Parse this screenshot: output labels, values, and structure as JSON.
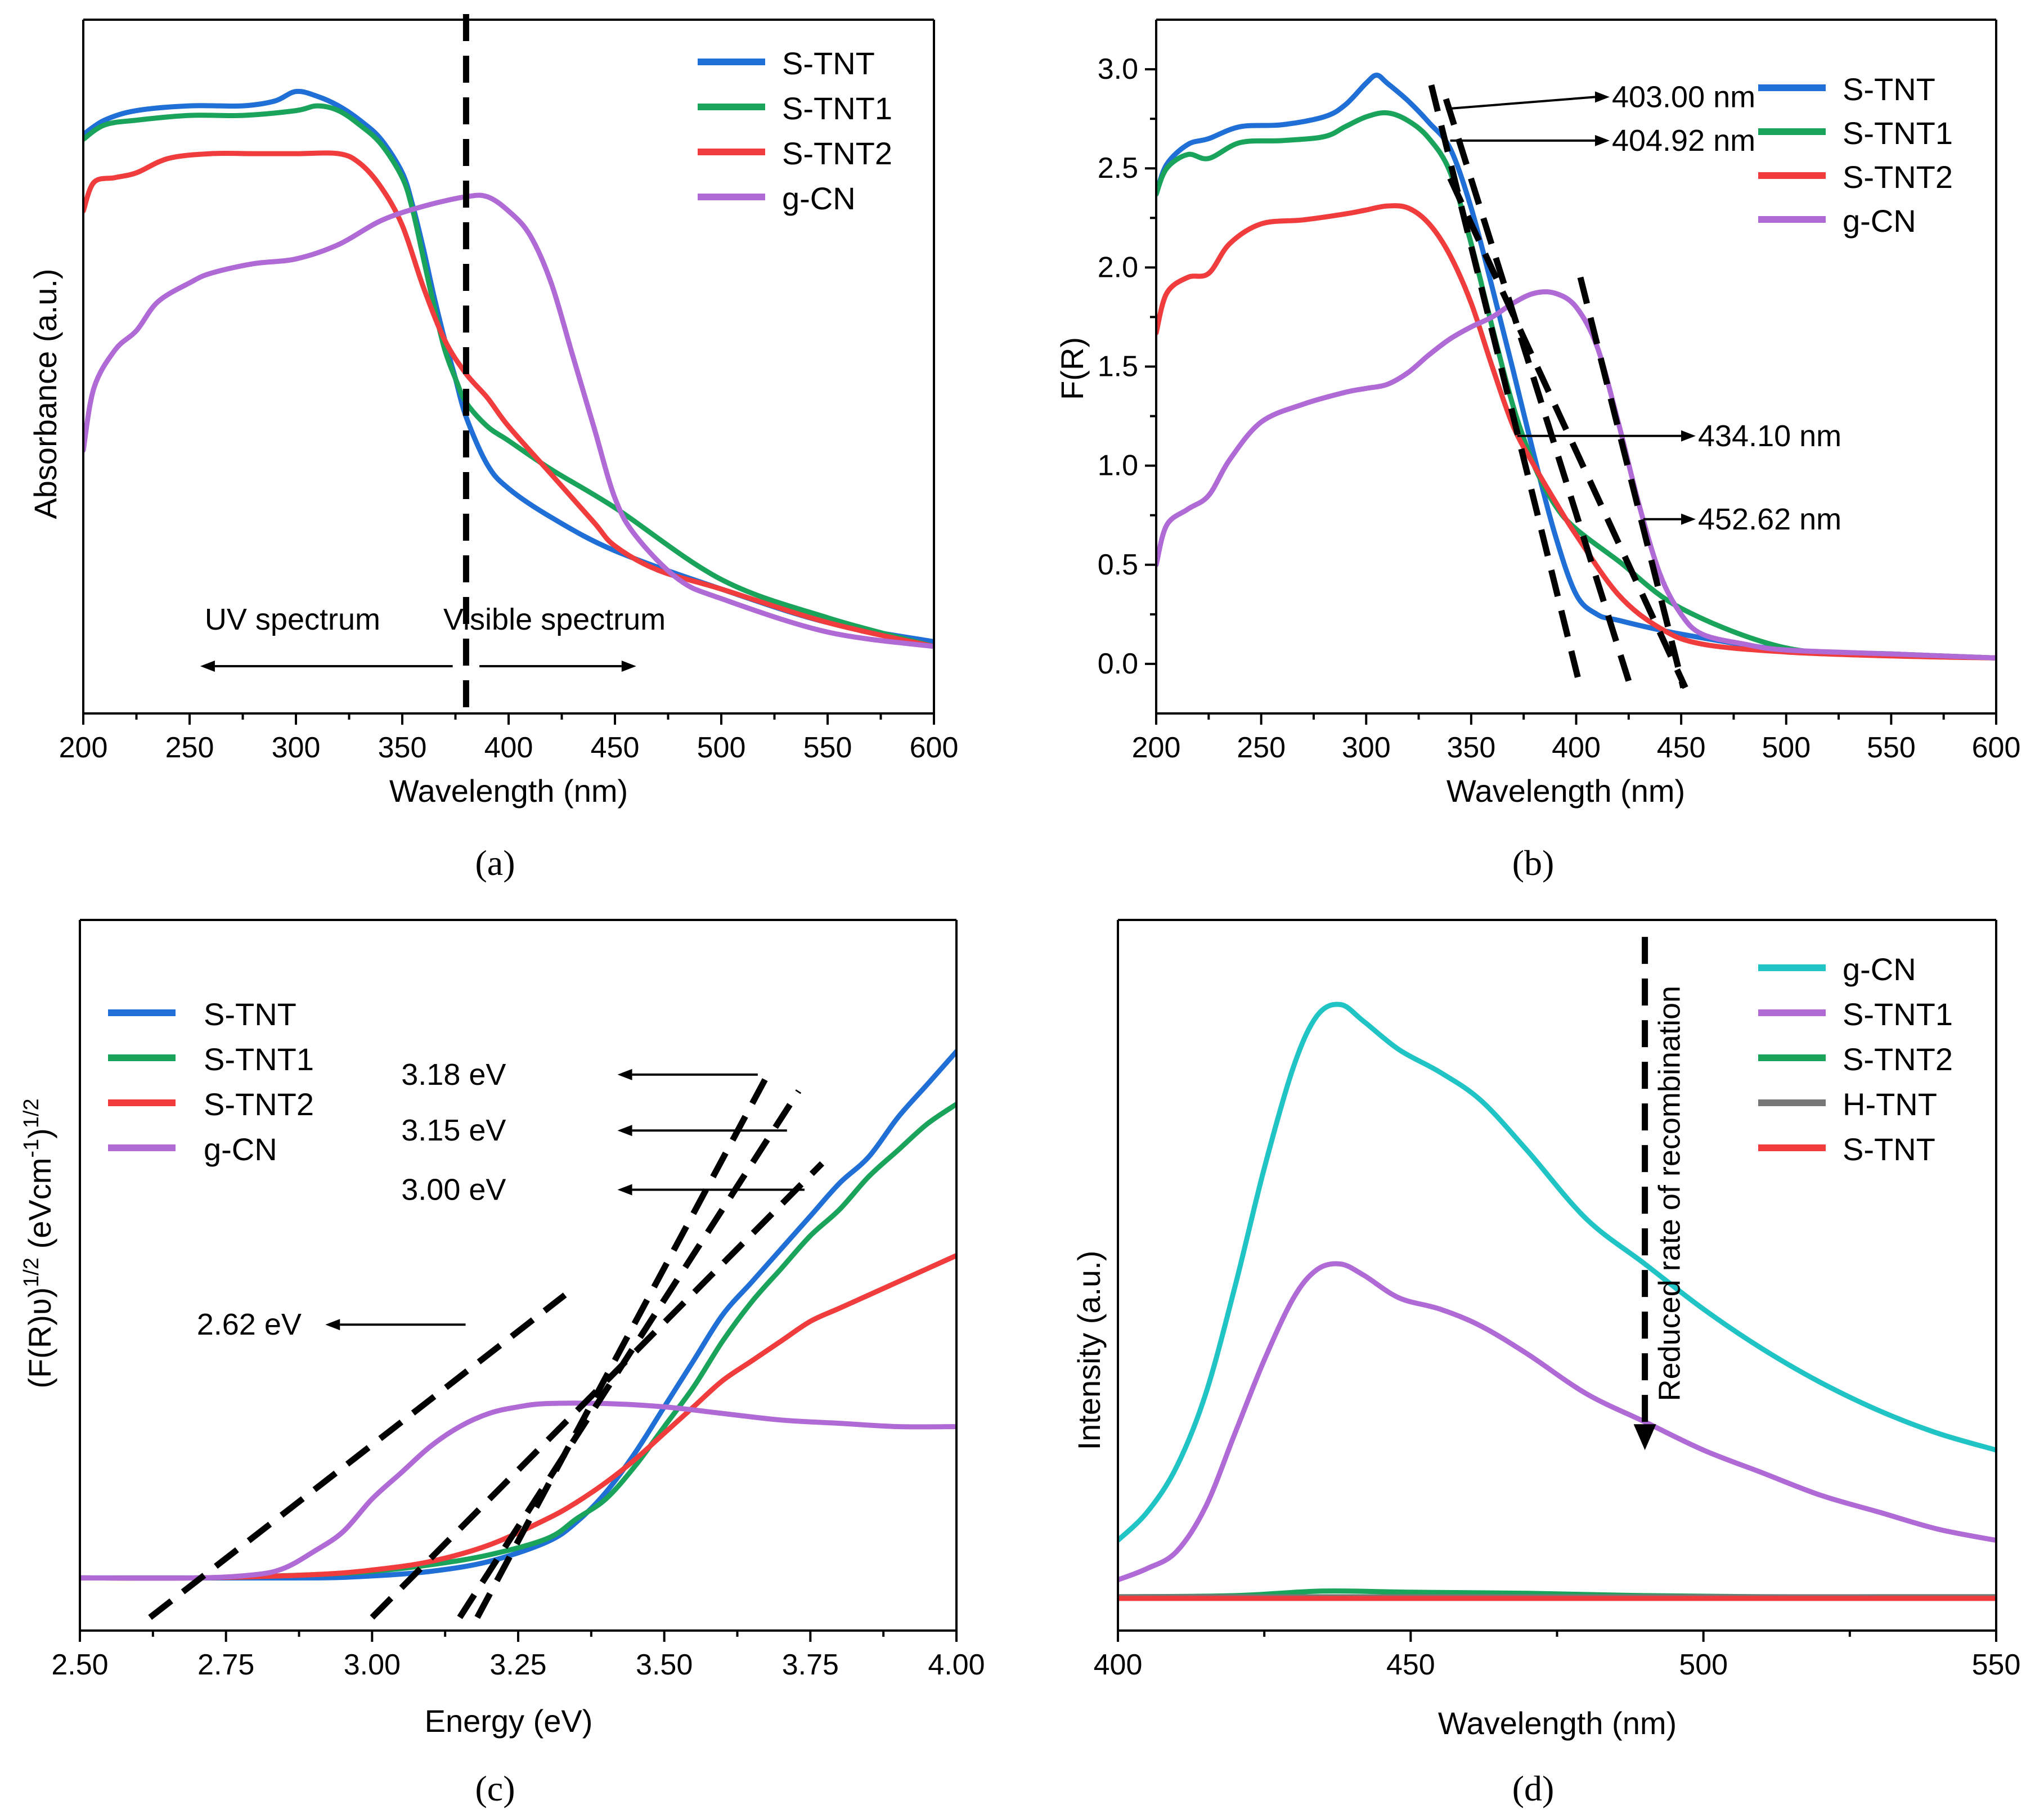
{
  "chart_data": [
    {
      "id": "a",
      "type": "line",
      "panel_label": "(a)",
      "xlabel": "Wavelength (nm)",
      "ylabel": "Absorbance (a.u.)",
      "xlim": [
        200,
        600
      ],
      "ylim": [
        0,
        1.45
      ],
      "xticks": [
        200,
        250,
        300,
        350,
        400,
        450,
        500,
        550,
        600
      ],
      "yticks": [],
      "legend_position": "top-right",
      "series": [
        {
          "name": "S-TNT",
          "color": "#1f6fd6",
          "x": [
            200,
            210,
            225,
            250,
            275,
            290,
            300,
            310,
            320,
            330,
            340,
            350,
            355,
            360,
            365,
            370,
            375,
            380,
            390,
            400,
            420,
            450,
            500,
            550,
            600
          ],
          "y": [
            1.21,
            1.24,
            1.26,
            1.27,
            1.27,
            1.28,
            1.3,
            1.29,
            1.27,
            1.24,
            1.2,
            1.13,
            1.06,
            0.97,
            0.87,
            0.78,
            0.7,
            0.62,
            0.52,
            0.47,
            0.41,
            0.34,
            0.26,
            0.19,
            0.15
          ]
        },
        {
          "name": "S-TNT1",
          "color": "#1aa35a",
          "x": [
            200,
            210,
            225,
            250,
            275,
            300,
            310,
            320,
            330,
            340,
            350,
            355,
            360,
            365,
            370,
            375,
            380,
            390,
            400,
            420,
            450,
            500,
            550,
            600
          ],
          "y": [
            1.2,
            1.23,
            1.24,
            1.25,
            1.25,
            1.26,
            1.27,
            1.26,
            1.23,
            1.19,
            1.12,
            1.05,
            0.95,
            0.85,
            0.76,
            0.7,
            0.65,
            0.6,
            0.57,
            0.51,
            0.43,
            0.28,
            0.2,
            0.14
          ]
        },
        {
          "name": "S-TNT2",
          "color": "#f03c3c",
          "x": [
            200,
            205,
            215,
            225,
            240,
            260,
            280,
            300,
            320,
            330,
            340,
            350,
            360,
            370,
            380,
            390,
            400,
            420,
            440,
            450,
            470,
            500,
            550,
            600
          ],
          "y": [
            1.05,
            1.11,
            1.12,
            1.13,
            1.16,
            1.17,
            1.17,
            1.17,
            1.17,
            1.15,
            1.1,
            1.02,
            0.89,
            0.78,
            0.71,
            0.66,
            0.6,
            0.5,
            0.4,
            0.35,
            0.3,
            0.26,
            0.19,
            0.14
          ]
        },
        {
          "name": "g-CN",
          "color": "#b06ad6",
          "x": [
            200,
            205,
            215,
            225,
            235,
            250,
            260,
            280,
            300,
            320,
            340,
            360,
            380,
            390,
            400,
            410,
            420,
            430,
            440,
            450,
            460,
            480,
            500,
            550,
            600
          ],
          "y": [
            0.55,
            0.68,
            0.76,
            0.8,
            0.86,
            0.9,
            0.92,
            0.94,
            0.95,
            0.98,
            1.03,
            1.06,
            1.08,
            1.08,
            1.05,
            1.0,
            0.9,
            0.75,
            0.6,
            0.45,
            0.37,
            0.28,
            0.24,
            0.17,
            0.14
          ]
        }
      ],
      "annotations": [
        {
          "text": "UV spectrum",
          "x": 300,
          "y": 0.14,
          "arrow_to_x": 255
        },
        {
          "text": "Visible spectrum",
          "x": 450,
          "y": 0.14,
          "arrow_to_x": 460
        }
      ],
      "vline_x": 380
    },
    {
      "id": "b",
      "type": "line",
      "panel_label": "(b)",
      "xlabel": "Wavelength (nm)",
      "ylabel": "F(R)",
      "xlim": [
        200,
        600
      ],
      "ylim": [
        -0.25,
        3.25
      ],
      "xticks": [
        200,
        250,
        300,
        350,
        400,
        450,
        500,
        550,
        600
      ],
      "yticks": [
        0.0,
        0.5,
        1.0,
        1.5,
        2.0,
        2.5,
        3.0
      ],
      "legend_position": "top-right",
      "series": [
        {
          "name": "S-TNT",
          "color": "#1f6fd6",
          "x": [
            200,
            205,
            215,
            225,
            240,
            260,
            280,
            290,
            300,
            305,
            310,
            320,
            330,
            340,
            350,
            360,
            370,
            380,
            390,
            400,
            410,
            420,
            450,
            500,
            550,
            600
          ],
          "y": [
            2.37,
            2.52,
            2.62,
            2.65,
            2.71,
            2.72,
            2.76,
            2.82,
            2.93,
            2.97,
            2.93,
            2.84,
            2.73,
            2.6,
            2.3,
            1.9,
            1.48,
            1.05,
            0.65,
            0.35,
            0.25,
            0.22,
            0.15,
            0.07,
            0.05,
            0.03
          ]
        },
        {
          "name": "S-TNT1",
          "color": "#1aa35a",
          "x": [
            200,
            205,
            215,
            225,
            240,
            260,
            280,
            290,
            300,
            310,
            320,
            330,
            340,
            350,
            360,
            370,
            380,
            390,
            400,
            420,
            450,
            500,
            550,
            600
          ],
          "y": [
            2.37,
            2.5,
            2.57,
            2.55,
            2.63,
            2.64,
            2.66,
            2.71,
            2.76,
            2.78,
            2.74,
            2.65,
            2.48,
            2.12,
            1.7,
            1.3,
            1.0,
            0.8,
            0.68,
            0.52,
            0.28,
            0.08,
            0.05,
            0.03
          ]
        },
        {
          "name": "S-TNT2",
          "color": "#f03c3c",
          "x": [
            200,
            205,
            215,
            225,
            235,
            250,
            270,
            290,
            300,
            310,
            320,
            330,
            340,
            350,
            360,
            370,
            380,
            390,
            400,
            420,
            440,
            460,
            500,
            550,
            600
          ],
          "y": [
            1.67,
            1.87,
            1.95,
            1.97,
            2.12,
            2.22,
            2.24,
            2.27,
            2.29,
            2.31,
            2.3,
            2.22,
            2.06,
            1.82,
            1.5,
            1.2,
            1.0,
            0.82,
            0.65,
            0.35,
            0.18,
            0.1,
            0.06,
            0.04,
            0.03
          ]
        },
        {
          "name": "g-CN",
          "color": "#b06ad6",
          "x": [
            200,
            205,
            215,
            225,
            235,
            250,
            270,
            290,
            300,
            310,
            320,
            330,
            340,
            350,
            360,
            370,
            380,
            390,
            400,
            410,
            420,
            430,
            440,
            450,
            460,
            480,
            500,
            550,
            600
          ],
          "y": [
            0.5,
            0.7,
            0.78,
            0.85,
            1.03,
            1.22,
            1.31,
            1.37,
            1.39,
            1.41,
            1.47,
            1.56,
            1.64,
            1.7,
            1.75,
            1.82,
            1.87,
            1.87,
            1.8,
            1.6,
            1.22,
            0.8,
            0.45,
            0.25,
            0.15,
            0.1,
            0.07,
            0.05,
            0.03
          ]
        }
      ],
      "tangents": [
        {
          "x1": 331,
          "y1": 2.92,
          "x2": 402,
          "y2": -0.12
        },
        {
          "x1": 338,
          "y1": 2.85,
          "x2": 426,
          "y2": -0.12
        },
        {
          "x1": 340,
          "y1": 2.45,
          "x2": 452,
          "y2": -0.12
        },
        {
          "x1": 402,
          "y1": 1.95,
          "x2": 451,
          "y2": -0.12
        }
      ],
      "annotations": [
        {
          "text": "403.00 nm",
          "x": 417,
          "y": 2.86,
          "arrow_from_x": 338,
          "arrow_from_y": 2.8
        },
        {
          "text": "404.92 nm",
          "x": 417,
          "y": 2.64,
          "arrow_from_x": 340,
          "arrow_from_y": 2.64
        },
        {
          "text": "434.10 nm",
          "x": 458,
          "y": 1.15,
          "arrow_from_x": 372,
          "arrow_from_y": 1.15
        },
        {
          "text": "452.62 nm",
          "x": 458,
          "y": 0.73,
          "arrow_from_x": 432,
          "arrow_from_y": 0.73
        }
      ]
    },
    {
      "id": "c",
      "type": "line",
      "panel_label": "(c)",
      "xlabel": "Energy (eV)",
      "ylabel": "(F(R)ʋ)^1/2 (eVcm^-1)^1/2",
      "ylabel_parts": {
        "p1": "(F(R)ʋ)",
        "s1": "1/2",
        "p2": " (eVcm",
        "s2": "-1",
        "p3": ")",
        "s3": "1/2"
      },
      "xlim": [
        2.5,
        4.0
      ],
      "ylim": [
        -0.08,
        1.0
      ],
      "xticks": [
        "2.50",
        "2.75",
        "3.00",
        "3.25",
        "3.50",
        "3.75",
        "4.00"
      ],
      "yticks": [],
      "legend_position": "top-left",
      "series": [
        {
          "name": "S-TNT",
          "color": "#1f6fd6",
          "x": [
            2.5,
            2.7,
            2.9,
            3.0,
            3.1,
            3.2,
            3.3,
            3.35,
            3.4,
            3.45,
            3.5,
            3.55,
            3.6,
            3.65,
            3.7,
            3.75,
            3.8,
            3.85,
            3.9,
            3.95,
            4.0
          ],
          "y": [
            0.0,
            0.0,
            0.0,
            0.003,
            0.01,
            0.025,
            0.055,
            0.085,
            0.13,
            0.19,
            0.26,
            0.33,
            0.4,
            0.45,
            0.5,
            0.55,
            0.6,
            0.64,
            0.7,
            0.75,
            0.8
          ]
        },
        {
          "name": "S-TNT1",
          "color": "#1aa35a",
          "x": [
            2.5,
            2.7,
            2.9,
            3.0,
            3.1,
            3.2,
            3.3,
            3.35,
            3.4,
            3.45,
            3.5,
            3.55,
            3.6,
            3.65,
            3.7,
            3.75,
            3.8,
            3.85,
            3.9,
            3.95,
            4.0
          ],
          "y": [
            0.0,
            0.0,
            0.005,
            0.01,
            0.02,
            0.035,
            0.06,
            0.09,
            0.12,
            0.17,
            0.23,
            0.29,
            0.36,
            0.42,
            0.47,
            0.52,
            0.56,
            0.61,
            0.65,
            0.69,
            0.72
          ]
        },
        {
          "name": "S-TNT2",
          "color": "#f03c3c",
          "x": [
            2.5,
            2.7,
            2.9,
            3.0,
            3.1,
            3.2,
            3.3,
            3.35,
            3.4,
            3.45,
            3.5,
            3.55,
            3.6,
            3.65,
            3.7,
            3.75,
            3.8,
            3.85,
            3.9,
            3.95,
            4.0
          ],
          "y": [
            0.0,
            0.0,
            0.005,
            0.012,
            0.025,
            0.05,
            0.09,
            0.115,
            0.145,
            0.18,
            0.22,
            0.26,
            0.3,
            0.33,
            0.36,
            0.39,
            0.41,
            0.43,
            0.45,
            0.47,
            0.49
          ]
        },
        {
          "name": "g-CN",
          "color": "#b06ad6",
          "x": [
            2.5,
            2.7,
            2.8,
            2.85,
            2.9,
            2.95,
            3.0,
            3.05,
            3.1,
            3.15,
            3.2,
            3.25,
            3.3,
            3.4,
            3.5,
            3.6,
            3.7,
            3.8,
            3.9,
            4.0
          ],
          "y": [
            0.0,
            0.0,
            0.005,
            0.015,
            0.04,
            0.07,
            0.12,
            0.16,
            0.2,
            0.23,
            0.25,
            0.26,
            0.265,
            0.265,
            0.26,
            0.25,
            0.24,
            0.235,
            0.23,
            0.23
          ]
        }
      ],
      "tangents": [
        {
          "x1": 2.62,
          "y1": -0.06,
          "x2": 3.33,
          "y2": 0.43
        },
        {
          "x1": 3.0,
          "y1": -0.06,
          "x2": 3.77,
          "y2": 0.63
        },
        {
          "x1": 3.15,
          "y1": -0.06,
          "x2": 3.73,
          "y2": 0.74
        },
        {
          "x1": 3.18,
          "y1": -0.06,
          "x2": 3.68,
          "y2": 0.77
        }
      ],
      "annotations": [
        {
          "text": "3.18 eV",
          "x": 3.05,
          "y": 0.765,
          "arrow_from_x": 3.66,
          "arrow_to_x": 3.42
        },
        {
          "text": "3.15 eV",
          "x": 3.05,
          "y": 0.68,
          "arrow_from_x": 3.71,
          "arrow_to_x": 3.42
        },
        {
          "text": "3.00 eV",
          "x": 3.05,
          "y": 0.59,
          "arrow_from_x": 3.74,
          "arrow_to_x": 3.42
        },
        {
          "text": "2.62 eV",
          "x": 2.7,
          "y": 0.385,
          "arrow_from_x": 3.16,
          "arrow_to_x": 2.92
        }
      ]
    },
    {
      "id": "d",
      "type": "line",
      "panel_label": "(d)",
      "xlabel": "Wavelength (nm)",
      "ylabel": "Intensity (a.u.)",
      "xlim": [
        400,
        550
      ],
      "ylim": [
        -0.06,
        1.2
      ],
      "xticks": [
        400,
        450,
        500,
        550
      ],
      "yticks": [],
      "legend_position": "top-right",
      "series": [
        {
          "name": "g-CN",
          "color": "#21c4c4",
          "x": [
            400,
            405,
            410,
            415,
            420,
            425,
            430,
            434,
            438,
            442,
            448,
            455,
            462,
            470,
            480,
            490,
            500,
            510,
            520,
            530,
            540,
            550
          ],
          "y": [
            0.1,
            0.15,
            0.23,
            0.36,
            0.55,
            0.76,
            0.94,
            1.03,
            1.05,
            1.02,
            0.97,
            0.93,
            0.88,
            0.79,
            0.67,
            0.59,
            0.51,
            0.44,
            0.38,
            0.33,
            0.29,
            0.26
          ]
        },
        {
          "name": "S-TNT1",
          "color": "#b06ad6",
          "x": [
            400,
            405,
            410,
            415,
            420,
            425,
            430,
            434,
            438,
            442,
            448,
            455,
            462,
            470,
            480,
            490,
            500,
            510,
            520,
            530,
            540,
            550
          ],
          "y": [
            0.03,
            0.05,
            0.08,
            0.16,
            0.29,
            0.42,
            0.53,
            0.58,
            0.59,
            0.57,
            0.53,
            0.51,
            0.48,
            0.43,
            0.36,
            0.31,
            0.26,
            0.22,
            0.18,
            0.15,
            0.12,
            0.1
          ]
        },
        {
          "name": "S-TNT2",
          "color": "#1aa35a",
          "x": [
            400,
            420,
            435,
            450,
            470,
            490,
            510,
            530,
            550
          ],
          "y": [
            0.0,
            0.002,
            0.01,
            0.008,
            0.006,
            0.002,
            0.0,
            0.0,
            0.0
          ]
        },
        {
          "name": "H-TNT",
          "color": "#777777",
          "x": [
            400,
            430,
            460,
            490,
            520,
            550
          ],
          "y": [
            0.0,
            0.0,
            0.0,
            0.0,
            0.0,
            0.0
          ]
        },
        {
          "name": "S-TNT",
          "color": "#f03c3c",
          "x": [
            400,
            430,
            460,
            490,
            520,
            550
          ],
          "y": [
            -0.003,
            -0.003,
            -0.003,
            -0.003,
            -0.003,
            -0.003
          ]
        }
      ],
      "annotations": [
        {
          "text": "Reduced rate of recombination",
          "orientation": "vertical",
          "arrow_x": 490,
          "arrow_y_from": 1.17,
          "arrow_y_to": 0.26
        }
      ]
    }
  ]
}
